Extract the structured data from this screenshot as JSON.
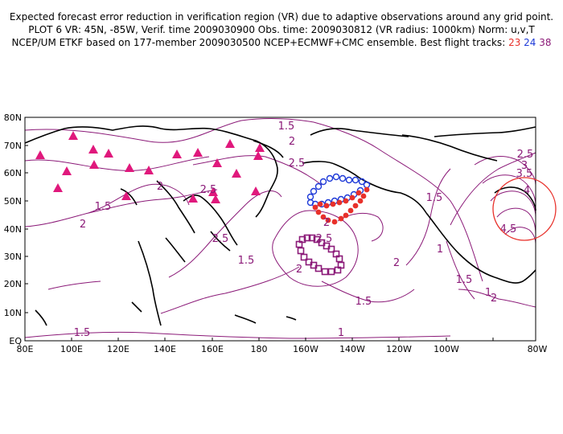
{
  "header": {
    "line1": "Expected forecast error reduction in verification region (VR) due to adaptive observations around any grid point.",
    "line2": "PLOT 6 VR: 45N, -85W, Verif. time 2009030900 Obs. time: 2009030812 (VR radius: 1000km) Norm: u,v,T",
    "line3_prefix": "NCEP/UM ETKF based on 177-member 2009030500 NCEP+ECMWF+CMC ensemble. Best flight tracks:",
    "track_red": "23",
    "track_blue": "24",
    "track_purple": "38"
  },
  "map": {
    "lat_labels": [
      "80N",
      "70N",
      "60N",
      "50N",
      "40N",
      "30N",
      "20N",
      "10N",
      "EQ"
    ],
    "lon_labels": [
      "80E",
      "100E",
      "120E",
      "140E",
      "160E",
      "180",
      "160W",
      "140W",
      "120W",
      "100W",
      "80W"
    ],
    "contour_labels": [
      "1.5",
      "2",
      "2.5",
      "2",
      "1.5",
      "2",
      "2.5",
      "2.5",
      "1.5",
      "2",
      "2",
      "2.5",
      "1.5",
      "2",
      "1.5",
      "1",
      "1.5",
      "1",
      "2",
      "2.5",
      "3",
      "3.5",
      "4",
      "4.5",
      "1.5",
      "1"
    ],
    "colors": {
      "contour": "#8b1a78",
      "coast": "#000000",
      "triangle": "#e0187c",
      "track_red": "#e8302a",
      "track_blue": "#1e3ad8",
      "track_purple": "#8b1a78",
      "vr_circle": "#e8302a"
    },
    "symbols": {
      "observation_sites": "triangle",
      "track_23": "filled-circle",
      "track_24": "open-circle",
      "track_38": "open-square",
      "verification_region": "circle-outline"
    }
  }
}
